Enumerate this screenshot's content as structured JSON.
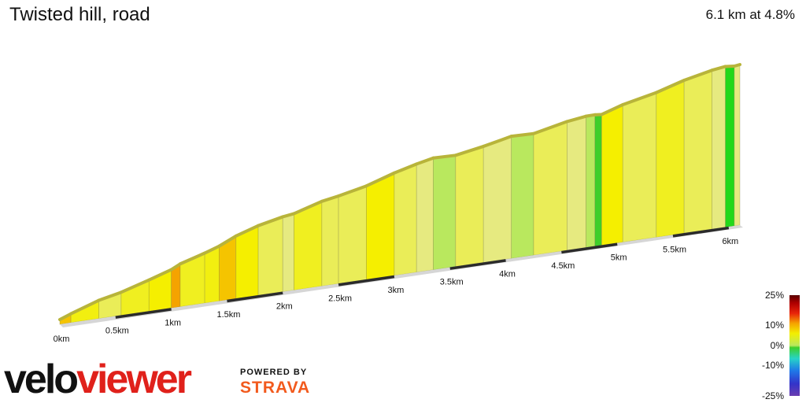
{
  "title": "Twisted hill, road",
  "summary": "6.1 km at 4.8%",
  "legend": {
    "labels": [
      "25%",
      "10%",
      "0%",
      "-10%",
      "-25%"
    ]
  },
  "branding": {
    "logo_part1": "velo",
    "logo_part2": "viewer",
    "powered_by": "POWERED BY",
    "strava": "STRAVA"
  },
  "chart_data": {
    "type": "area",
    "title": "Twisted hill, road",
    "subtitle": "6.1 km at 4.8%",
    "xlabel": "",
    "ylabel": "",
    "x_ticks": [
      "0km",
      "0.5km",
      "1km",
      "1.5km",
      "2km",
      "2.5km",
      "3km",
      "3.5km",
      "4km",
      "4.5km",
      "5km",
      "5.5km",
      "6km"
    ],
    "total_km": 6.1,
    "avg_gradient_pct": 4.8,
    "colorscale": {
      "stops_pct": [
        25,
        10,
        0,
        -10,
        -25
      ],
      "colors": [
        "#5a0000",
        "#f5a300",
        "#3ecf2a",
        "#27d3c8",
        "#6a3db0"
      ]
    },
    "segments": [
      {
        "x": [
          0.0,
          0.1
        ],
        "grade": 6.5,
        "color": "#f5c400"
      },
      {
        "x": [
          0.1,
          0.35
        ],
        "grade": 6.0,
        "color": "#f2ef10"
      },
      {
        "x": [
          0.35,
          0.55
        ],
        "grade": 4.5,
        "color": "#eaed58"
      },
      {
        "x": [
          0.55,
          0.8
        ],
        "grade": 5.5,
        "color": "#f0ef20"
      },
      {
        "x": [
          0.8,
          1.0
        ],
        "grade": 5.8,
        "color": "#f5ef00"
      },
      {
        "x": [
          1.0,
          1.08
        ],
        "grade": 8.0,
        "color": "#f5a300"
      },
      {
        "x": [
          1.08,
          1.3
        ],
        "grade": 5.5,
        "color": "#f0ef20"
      },
      {
        "x": [
          1.3,
          1.43
        ],
        "grade": 6.0,
        "color": "#f2ef10"
      },
      {
        "x": [
          1.43,
          1.58
        ],
        "grade": 7.5,
        "color": "#f5c400"
      },
      {
        "x": [
          1.58,
          1.78
        ],
        "grade": 5.8,
        "color": "#f5ef00"
      },
      {
        "x": [
          1.78,
          2.0
        ],
        "grade": 4.5,
        "color": "#eaed58"
      },
      {
        "x": [
          2.0,
          2.1
        ],
        "grade": 3.5,
        "color": "#e6ea80"
      },
      {
        "x": [
          2.1,
          2.35
        ],
        "grade": 5.5,
        "color": "#f0ef20"
      },
      {
        "x": [
          2.35,
          2.5
        ],
        "grade": 4.0,
        "color": "#eaed58"
      },
      {
        "x": [
          2.5,
          2.75
        ],
        "grade": 4.5,
        "color": "#eaed58"
      },
      {
        "x": [
          2.75,
          3.0
        ],
        "grade": 5.8,
        "color": "#f5ef00"
      },
      {
        "x": [
          3.0,
          3.2
        ],
        "grade": 5.0,
        "color": "#eaed58"
      },
      {
        "x": [
          3.2,
          3.35
        ],
        "grade": 4.5,
        "color": "#e6ea80"
      },
      {
        "x": [
          3.35,
          3.55
        ],
        "grade": 1.5,
        "color": "#b9e85e"
      },
      {
        "x": [
          3.55,
          3.8
        ],
        "grade": 4.0,
        "color": "#eaed58"
      },
      {
        "x": [
          3.8,
          4.05
        ],
        "grade": 4.5,
        "color": "#e6ea80"
      },
      {
        "x": [
          4.05,
          4.25
        ],
        "grade": 1.5,
        "color": "#b9e85e"
      },
      {
        "x": [
          4.25,
          4.55
        ],
        "grade": 4.5,
        "color": "#eaed58"
      },
      {
        "x": [
          4.55,
          4.72
        ],
        "grade": 3.5,
        "color": "#e6ea80"
      },
      {
        "x": [
          4.72,
          4.8
        ],
        "grade": 2.0,
        "color": "#b9e85e"
      },
      {
        "x": [
          4.8,
          4.86
        ],
        "grade": 0.5,
        "color": "#3ecf2a"
      },
      {
        "x": [
          4.86,
          5.05
        ],
        "grade": 5.8,
        "color": "#f5ef00"
      },
      {
        "x": [
          5.05,
          5.35
        ],
        "grade": 4.5,
        "color": "#eaed58"
      },
      {
        "x": [
          5.35,
          5.6
        ],
        "grade": 5.5,
        "color": "#f0ef20"
      },
      {
        "x": [
          5.6,
          5.85
        ],
        "grade": 4.5,
        "color": "#eaed58"
      },
      {
        "x": [
          5.85,
          5.97
        ],
        "grade": 3.5,
        "color": "#e6ea80"
      },
      {
        "x": [
          5.97,
          6.05
        ],
        "grade": 0.5,
        "color": "#22d81a"
      },
      {
        "x": [
          6.05,
          6.1
        ],
        "grade": 3.5,
        "color": "#e6ea80"
      }
    ]
  }
}
